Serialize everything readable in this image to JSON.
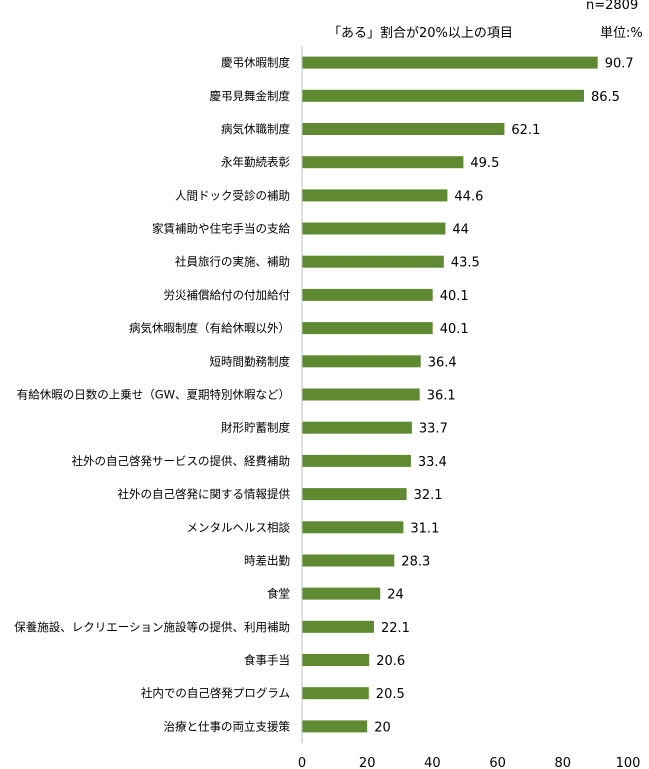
{
  "header": {
    "subtitle": "「ある」割合が20%以上の項目",
    "sample": "n=2809",
    "unit": "単位:%"
  },
  "colors": {
    "bar": "#5f8a32",
    "axis": "#bfbfbf"
  },
  "chart_data": {
    "type": "bar",
    "orientation": "horizontal",
    "title": "「ある」割合が20%以上の項目",
    "xlim": [
      0,
      100
    ],
    "xticks": [
      0,
      20,
      40,
      60,
      80,
      100
    ],
    "grid": false,
    "legend": "none",
    "categories": [
      "慶弔休暇制度",
      "慶弔見舞金制度",
      "病気休職制度",
      "永年勤続表彰",
      "人間ドック受診の補助",
      "家賃補助や住宅手当の支給",
      "社員旅行の実施、補助",
      "労災補償給付の付加給付",
      "病気休暇制度（有給休暇以外）",
      "短時間勤務制度",
      "有給休暇の日数の上乗せ（GW、夏期特別休暇など）",
      "財形貯蓄制度",
      "社外の自己啓発サービスの提供、経費補助",
      "社外の自己啓発に関する情報提供",
      "メンタルヘルス相談",
      "時差出勤",
      "食堂",
      "保養施設、レクリエーション施設等の提供、利用補助",
      "食事手当",
      "社内での自己啓発プログラム",
      "治療と仕事の両立支援策"
    ],
    "values": [
      90.7,
      86.5,
      62.1,
      49.5,
      44.6,
      44,
      43.5,
      40.1,
      40.1,
      36.4,
      36.1,
      33.7,
      33.4,
      32.1,
      31.1,
      28.3,
      24,
      22.1,
      20.6,
      20.5,
      20
    ]
  }
}
